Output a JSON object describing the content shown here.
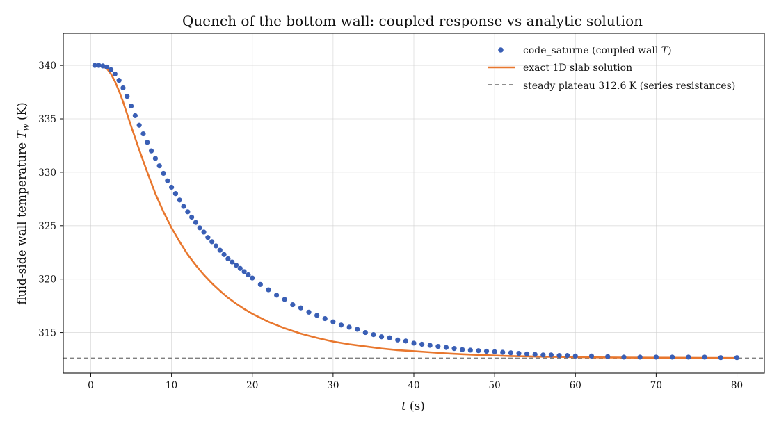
{
  "chart_data": {
    "type": "scatter",
    "title": "Quench of the bottom wall: coupled response vs analytic solution",
    "xlabel_var": "t",
    "xlabel_unit": "(s)",
    "ylabel_text": "fluid-side wall temperature",
    "ylabel_var": "T",
    "ylabel_sub": "w",
    "ylabel_unit": "(K)",
    "xlim": [
      -3.4,
      83.4
    ],
    "ylim": [
      311.2,
      343.0
    ],
    "xticks": [
      0,
      10,
      20,
      30,
      40,
      50,
      60,
      70,
      80
    ],
    "yticks": [
      315,
      320,
      325,
      330,
      335,
      340
    ],
    "grid": true,
    "legend_position": "top-right",
    "colors": {
      "points": "#3a5fb5",
      "exact": "#e8772e",
      "plateau": "#7f7f7f"
    },
    "legend": [
      {
        "label_main": "code_saturne (coupled wall ",
        "label_var": "T",
        "label_tail": ")",
        "kind": "marker"
      },
      {
        "label_main": "exact 1D slab solution",
        "kind": "line"
      },
      {
        "label_main": "steady plateau 312.6 K (series resistances)",
        "kind": "dashed"
      }
    ],
    "plateau_value": 312.6,
    "series": [
      {
        "name": "code_saturne (coupled wall T)",
        "kind": "points",
        "x": [
          0.5,
          1.0,
          1.5,
          2.0,
          2.5,
          3.0,
          3.5,
          4.0,
          4.5,
          5.0,
          5.5,
          6.0,
          6.5,
          7.0,
          7.5,
          8.0,
          8.5,
          9.0,
          9.5,
          10.0,
          10.5,
          11.0,
          11.5,
          12.0,
          12.5,
          13.0,
          13.5,
          14.0,
          14.5,
          15.0,
          15.5,
          16.0,
          16.5,
          17.0,
          17.5,
          18.0,
          18.5,
          19.0,
          19.5,
          20.0,
          21.0,
          22.0,
          23.0,
          24.0,
          25.0,
          26.0,
          27.0,
          28.0,
          29.0,
          30.0,
          31.0,
          32.0,
          33.0,
          34.0,
          35.0,
          36.0,
          37.0,
          38.0,
          39.0,
          40.0,
          41.0,
          42.0,
          43.0,
          44.0,
          45.0,
          46.0,
          47.0,
          48.0,
          49.0,
          50.0,
          51.0,
          52.0,
          53.0,
          54.0,
          55.0,
          56.0,
          57.0,
          58.0,
          59.0,
          60.0,
          62.0,
          64.0,
          66.0,
          68.0,
          70.0,
          72.0,
          74.0,
          76.0,
          78.0,
          80.0
        ],
        "y": [
          340.0,
          340.0,
          339.95,
          339.85,
          339.6,
          339.2,
          338.6,
          337.9,
          337.1,
          336.2,
          335.3,
          334.4,
          333.6,
          332.8,
          332.0,
          331.3,
          330.6,
          329.9,
          329.2,
          328.6,
          328.0,
          327.4,
          326.8,
          326.3,
          325.8,
          325.3,
          324.8,
          324.4,
          323.9,
          323.5,
          323.1,
          322.7,
          322.3,
          321.9,
          321.6,
          321.3,
          321.0,
          320.7,
          320.4,
          320.1,
          319.5,
          319.0,
          318.5,
          318.1,
          317.6,
          317.3,
          316.9,
          316.6,
          316.3,
          316.0,
          315.7,
          315.5,
          315.3,
          315.0,
          314.8,
          314.6,
          314.5,
          314.3,
          314.2,
          314.0,
          313.9,
          313.8,
          313.7,
          313.6,
          313.5,
          313.4,
          313.35,
          313.3,
          313.25,
          313.2,
          313.15,
          313.1,
          313.05,
          313.0,
          312.95,
          312.9,
          312.9,
          312.85,
          312.85,
          312.8,
          312.8,
          312.75,
          312.7,
          312.7,
          312.7,
          312.7,
          312.7,
          312.7,
          312.65,
          312.65
        ]
      },
      {
        "name": "exact 1D slab solution",
        "kind": "line",
        "x": [
          0.5,
          1.0,
          1.5,
          2.0,
          2.5,
          3.0,
          3.5,
          4.0,
          5.0,
          6.0,
          7.0,
          8.0,
          9.0,
          10.0,
          11.0,
          12.0,
          13.0,
          14.0,
          15.0,
          16.0,
          17.0,
          18.0,
          19.0,
          20.0,
          22.0,
          24.0,
          26.0,
          28.0,
          30.0,
          32.0,
          34.0,
          36.0,
          38.0,
          40.0,
          42.0,
          44.0,
          46.0,
          48.0,
          50.0,
          52.0,
          54.0,
          56.0,
          58.0,
          60.0,
          64.0,
          68.0,
          72.0,
          76.0,
          80.0
        ],
        "y": [
          340.0,
          340.0,
          339.9,
          339.7,
          339.2,
          338.5,
          337.6,
          336.6,
          334.3,
          332.1,
          330.0,
          328.0,
          326.3,
          324.8,
          323.5,
          322.3,
          321.3,
          320.4,
          319.6,
          318.9,
          318.25,
          317.7,
          317.2,
          316.75,
          316.0,
          315.4,
          314.9,
          314.5,
          314.15,
          313.9,
          313.7,
          313.5,
          313.35,
          313.25,
          313.15,
          313.05,
          312.97,
          312.9,
          312.85,
          312.8,
          312.77,
          312.74,
          312.72,
          312.7,
          312.67,
          312.65,
          312.64,
          312.63,
          312.62
        ]
      }
    ]
  }
}
